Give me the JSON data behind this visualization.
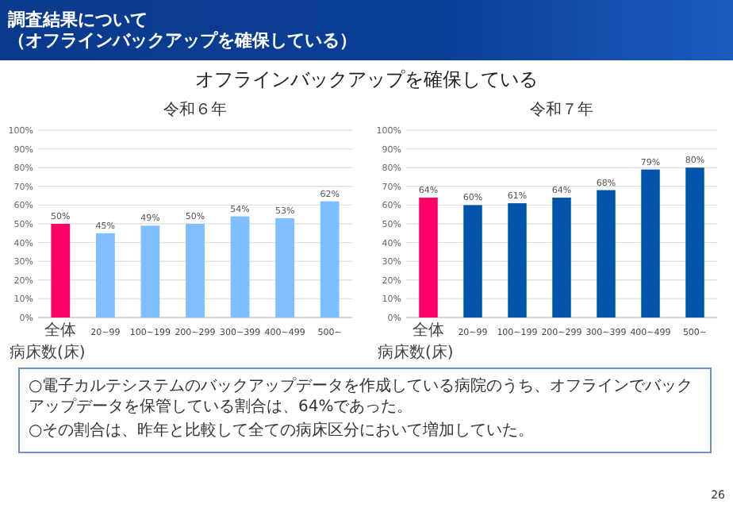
{
  "chart_data": [
    {
      "type": "other",
      "title": "調査結果について",
      "subtitle": "（オフラインバックアップを確保している）",
      "annotations": [
        "オフラインバックアップを確保している",
        "○電子カルテシステムのバックアップデータを作成している病院のうち、オフラインでバックアップデータを保管している割合は、64%であった。",
        "○その割合は、昨年と比較して全ての病床区分において増加していた。",
        "26"
      ]
    },
    {
      "type": "bar",
      "title": "令和６年",
      "xlabel": "病床数(床)",
      "categories": [
        "全体",
        "20~99",
        "100~199",
        "200~299",
        "300~399",
        "400~499",
        "500~"
      ],
      "values": [
        50,
        45,
        49,
        50,
        54,
        53,
        62
      ],
      "colors": [
        "#ff0066",
        "#7fbfff",
        "#7fbfff",
        "#7fbfff",
        "#7fbfff",
        "#7fbfff",
        "#7fbfff"
      ],
      "value_labels": [
        "50%",
        "45%",
        "49%",
        "50%",
        "54%",
        "53%",
        "62%"
      ],
      "ylim": [
        0,
        100
      ],
      "grid": "y",
      "yticks": [
        {
          "value": 0,
          "label": "0%"
        },
        {
          "value": 10,
          "label": "10%"
        },
        {
          "value": 20,
          "label": "20%"
        },
        {
          "value": 30,
          "label": "30%"
        },
        {
          "value": 40,
          "label": "40%"
        },
        {
          "value": 50,
          "label": "50%"
        },
        {
          "value": 60,
          "label": "60%"
        },
        {
          "value": 70,
          "label": "70%"
        },
        {
          "value": 80,
          "label": "80%"
        },
        {
          "value": 90,
          "label": "90%"
        },
        {
          "value": 100,
          "label": "100%"
        }
      ]
    },
    {
      "type": "bar",
      "title": "令和７年",
      "xlabel": "病床数(床)",
      "categories": [
        "全体",
        "20~99",
        "100~199",
        "200~299",
        "300~399",
        "400~499",
        "500~"
      ],
      "values": [
        64,
        60,
        61,
        64,
        68,
        79,
        80
      ],
      "colors": [
        "#ff0066",
        "#0055aa",
        "#0055aa",
        "#0055aa",
        "#0055aa",
        "#0055aa",
        "#0055aa"
      ],
      "value_labels": [
        "64%",
        "60%",
        "61%",
        "64%",
        "68%",
        "79%",
        "80%"
      ],
      "ylim": [
        0,
        100
      ],
      "grid": "y",
      "yticks": [
        {
          "value": 0,
          "label": "0%"
        },
        {
          "value": 10,
          "label": "10%"
        },
        {
          "value": 20,
          "label": "20%"
        },
        {
          "value": 30,
          "label": "30%"
        },
        {
          "value": 40,
          "label": "40%"
        },
        {
          "value": 50,
          "label": "50%"
        },
        {
          "value": 60,
          "label": "60%"
        },
        {
          "value": 70,
          "label": "70%"
        },
        {
          "value": 80,
          "label": "80%"
        },
        {
          "value": 90,
          "label": "90%"
        },
        {
          "value": 100,
          "label": "100%"
        }
      ]
    }
  ]
}
